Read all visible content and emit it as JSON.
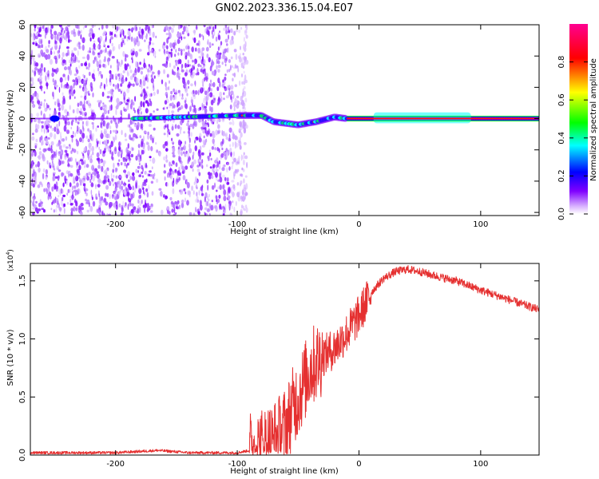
{
  "title": "GN02.2023.336.15.04.E07",
  "chart_data": [
    {
      "type": "heatmap",
      "xlabel": "Height of straight line (km)",
      "ylabel": "Frequency (Hz)",
      "xlim": [
        -270,
        148
      ],
      "ylim": [
        -62,
        60
      ],
      "x_ticks": [
        -200,
        -100,
        0,
        100
      ],
      "y_ticks": [
        -60,
        -40,
        -20,
        0,
        20,
        40,
        60
      ],
      "colorbar": {
        "label": "Normalized spectral amplitude",
        "range": [
          0,
          1
        ],
        "ticks": [
          0.0,
          0.2,
          0.4,
          0.6,
          0.8
        ],
        "colormap": [
          "#ffffff",
          "#8000ff",
          "#0000ff",
          "#00ffff",
          "#00ff00",
          "#ffff00",
          "#ff0000",
          "#ff00a0"
        ]
      },
      "features": {
        "broadband_noise_x_range": [
          -270,
          -100
        ],
        "ridge_frequency_hz": [
          [
            -185,
            0
          ],
          [
            -100,
            2
          ],
          [
            -80,
            2
          ],
          [
            -70,
            -2
          ],
          [
            -50,
            -4
          ],
          [
            -35,
            -2
          ],
          [
            -20,
            1
          ],
          [
            -10,
            0
          ],
          [
            148,
            0
          ]
        ]
      }
    },
    {
      "type": "line",
      "xlabel": "Height of straight line (km)",
      "ylabel": "SNR (10 * v/v)",
      "y_scale_label": "(x10",
      "y_scale_exponent": "4",
      "xlim": [
        -270,
        148
      ],
      "ylim": [
        0,
        1.65
      ],
      "x_ticks": [
        -200,
        -100,
        0,
        100
      ],
      "y_ticks": [
        0.0,
        0.5,
        1.0,
        1.5
      ],
      "series_color": "#e53030",
      "x": [
        -270,
        -200,
        -165,
        -140,
        -100,
        -85,
        -70,
        -60,
        -55,
        -50,
        -45,
        -40,
        -35,
        -30,
        -20,
        -10,
        0,
        10,
        20,
        30,
        40,
        50,
        60,
        80,
        100,
        120,
        148
      ],
      "y": [
        0.02,
        0.02,
        0.04,
        0.02,
        0.02,
        0.05,
        0.12,
        0.25,
        0.4,
        0.5,
        0.62,
        0.75,
        0.8,
        0.85,
        0.92,
        1.05,
        1.2,
        1.4,
        1.52,
        1.58,
        1.6,
        1.58,
        1.55,
        1.5,
        1.42,
        1.35,
        1.25
      ]
    }
  ]
}
